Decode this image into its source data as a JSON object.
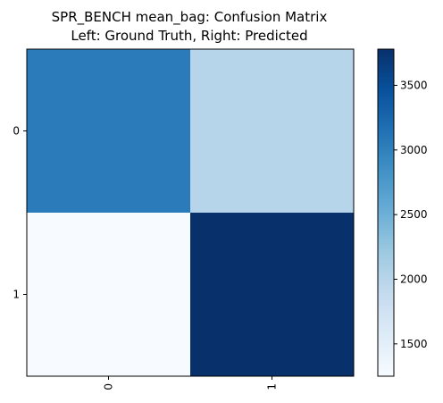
{
  "chart_data": {
    "type": "heatmap",
    "title": "SPR_BENCH mean_bag: Confusion Matrix",
    "subtitle": "Left: Ground Truth, Right: Predicted",
    "x_ticks": [
      "0",
      "1"
    ],
    "y_ticks": [
      "0",
      "1"
    ],
    "matrix": [
      [
        3050,
        2000
      ],
      [
        1250,
        3780
      ]
    ],
    "colormap": "Blues",
    "color_range": [
      1250,
      3780
    ],
    "colorbar_ticks": [
      "1500",
      "2000",
      "2500",
      "3000",
      "3500"
    ],
    "grid": false
  }
}
